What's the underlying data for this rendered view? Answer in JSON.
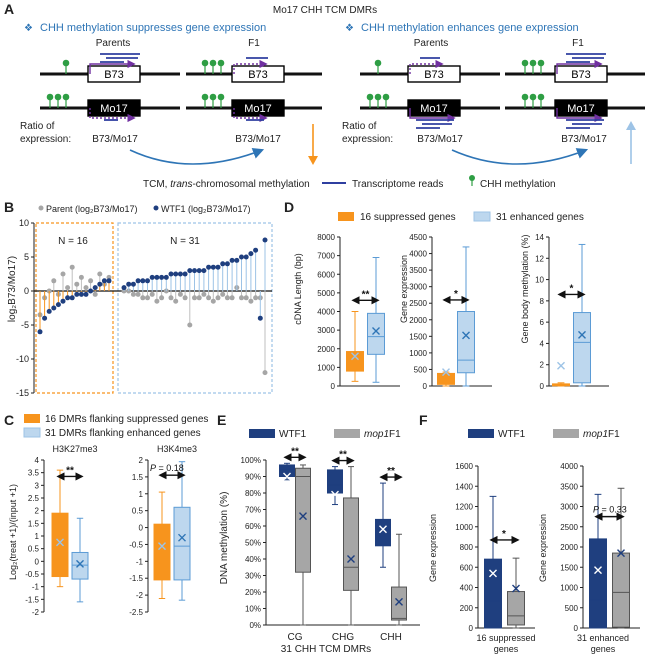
{
  "colors": {
    "orange": "#f7941d",
    "light_blue": "#9dc3e6",
    "light_blue_fill": "#bdd7ee",
    "navy": "#1f3f7f",
    "gray": "#a6a6a6",
    "purple": "#7030a0",
    "green": "#2e9e44",
    "read_blue": "#2f3fa0",
    "accent_blue": "#2e75b6"
  },
  "panel_a": {
    "label": "A",
    "title": "Mo17 CHH TCM DMRs",
    "left_heading": "CHH methylation suppresses gene expression",
    "right_heading": "CHH methylation enhances gene expression",
    "parents_label": "Parents",
    "f1_label": "F1",
    "b73_label": "B73",
    "mo17_label": "Mo17",
    "ratio_line1": "Ratio of",
    "ratio_line2": "expression:",
    "ratio_value": "B73/Mo17",
    "legend_tcm_prefix": "TCM, ",
    "legend_tcm_italic": "trans",
    "legend_tcm_suffix": "-chromosomal methylation",
    "legend_reads": "Transcriptome reads",
    "legend_chh": "CHH methylation",
    "diamond_glyph": "❖"
  },
  "panel_b": {
    "label": "B",
    "legend_parent": "Parent (log₂B73/Mo17)",
    "legend_wtf1": "WTF1 (log₂B73/Mo17)",
    "ylabel": "log₂B73/Mo17)",
    "yticks": [
      "10",
      "5",
      "0",
      "-5",
      "-10",
      "-15"
    ],
    "n_left": "N = 16",
    "n_right": "N = 31"
  },
  "panel_c": {
    "label": "C",
    "legend_suppressed": "16 DMRs flanking suppressed genes",
    "legend_enhanced": "31 DMRs flanking enhanced genes",
    "ylabel": "Log₂(treat +1)/(input +1)",
    "plot1_title": "H3K27me3",
    "plot2_title": "H3K4me3",
    "plot1_sig": "**",
    "plot2_p_italic": "P",
    "plot2_p_value": " = 0.18",
    "plot1_yticks": [
      "4",
      "3.5",
      "3",
      "2.5",
      "2",
      "1.5",
      "1",
      "0.5",
      "0",
      "-0.5",
      "-1",
      "-1.5",
      "-2"
    ],
    "plot2_yticks": [
      "2",
      "1.5",
      "1",
      "0.5",
      "0",
      "-0.5",
      "-1",
      "-1.5",
      "-2",
      "-2.5"
    ]
  },
  "panel_d": {
    "label": "D",
    "legend_suppressed": "16 suppressed genes",
    "legend_enhanced": "31 enhanced genes",
    "plot1_ylabel": "cDNA Length (bp)",
    "plot2_ylabel": "Gene expression",
    "plot3_ylabel": "Gene body methylation (%)",
    "plot1_sig": "**",
    "plot2_sig": "*",
    "plot3_sig": "*",
    "plot1_yticks": [
      "8000",
      "7000",
      "6000",
      "5000",
      "4000",
      "3000",
      "2000",
      "1000",
      "0"
    ],
    "plot2_yticks": [
      "4500",
      "4000",
      "3500",
      "3000",
      "2500",
      "2000",
      "1500",
      "1000",
      "500",
      "0"
    ],
    "plot3_yticks": [
      "14",
      "12",
      "10",
      "8",
      "6",
      "4",
      "2",
      "0"
    ]
  },
  "panel_e": {
    "label": "E",
    "legend_wtf1": "WTF1",
    "legend_mop1_italic": "mop1",
    "legend_mop1_suffix": "F1",
    "ylabel": "DNA methylation (%)",
    "yticks": [
      "100%",
      "90%",
      "80%",
      "70%",
      "60%",
      "50%",
      "40%",
      "30%",
      "20%",
      "10%",
      "0%"
    ],
    "categories": [
      "CG",
      "CHG",
      "CHH"
    ],
    "sig": [
      "**",
      "**",
      "**"
    ],
    "xlabel": "31 CHH TCM DMRs"
  },
  "panel_f": {
    "label": "F",
    "legend_wtf1": "WTF1",
    "legend_mop1_italic": "mop1",
    "legend_mop1_suffix": "F1",
    "plot1_ylabel": "Gene expression",
    "plot2_ylabel": "Gene expression",
    "plot1_sig": "*",
    "plot2_p_italic": "P",
    "plot2_p_value": " = 0.33",
    "plot1_yticks": [
      "1600",
      "1400",
      "1200",
      "1000",
      "800",
      "600",
      "400",
      "200",
      "0"
    ],
    "plot2_yticks": [
      "4000",
      "3500",
      "3000",
      "2500",
      "2000",
      "1500",
      "1000",
      "500",
      "0"
    ],
    "plot1_xlabel_1": "16 suppressed",
    "plot1_xlabel_2": "genes",
    "plot2_xlabel_1": "31 enhanced",
    "plot2_xlabel_2": "genes"
  },
  "chart_data": [
    {
      "type": "scatter",
      "panel": "B",
      "ylabel": "log₂B73/Mo17)",
      "ylim": [
        -15,
        10
      ],
      "series": [
        {
          "name": "Parent (log₂B73/Mo17)",
          "group": "suppressed",
          "values": [
            -3.5,
            -1,
            0,
            1.5,
            -0.5,
            2.5,
            0.5,
            3.5,
            1,
            2,
            0.5,
            1.5,
            -0.5,
            2.5,
            1,
            2
          ]
        },
        {
          "name": "WTF1 (log₂B73/Mo17)",
          "group": "suppressed",
          "values": [
            -6,
            -4,
            -3,
            -2.5,
            -2,
            -1.5,
            -1,
            -1,
            -0.5,
            -0.5,
            -0.5,
            0,
            0.5,
            1,
            1.5,
            1.5
          ]
        },
        {
          "name": "Parent (log₂B73/Mo17)",
          "group": "enhanced",
          "values": [
            0,
            0,
            -0.5,
            -0.5,
            -1,
            -1,
            -0.5,
            -1.5,
            -1,
            0,
            -1,
            -1.5,
            -0.5,
            -1,
            -5,
            -1,
            -1,
            -0.5,
            -1,
            -1.5,
            -1,
            -0.5,
            -1,
            -1,
            0.5,
            -1,
            -1,
            -1.5,
            -1,
            -1,
            -12
          ]
        },
        {
          "name": "WTF1 (log₂B73/Mo17)",
          "group": "enhanced",
          "values": [
            0.5,
            1,
            1,
            1.5,
            1.5,
            1.5,
            2,
            2,
            2,
            2,
            2.5,
            2.5,
            2.5,
            2.5,
            3,
            3,
            3,
            3,
            3.5,
            3.5,
            3.5,
            4,
            4,
            4.5,
            4.5,
            5,
            5,
            5.5,
            6,
            -4,
            7.5
          ]
        }
      ]
    },
    {
      "type": "box",
      "panel": "C",
      "title": "H3K27me3",
      "ylim": [
        -2,
        4
      ],
      "series": [
        {
          "name": "16 DMRs flanking suppressed genes",
          "min": -1,
          "q1": -0.6,
          "median": 0.1,
          "q3": 1.9,
          "max": 3.6,
          "mean": 0.75
        },
        {
          "name": "31 DMRs flanking enhanced genes",
          "min": -1.6,
          "q1": -0.7,
          "median": -0.15,
          "q3": 0.35,
          "max": 1.7,
          "mean": -0.1
        }
      ]
    },
    {
      "type": "box",
      "panel": "C",
      "title": "H3K4me3",
      "ylim": [
        -2.5,
        2
      ],
      "series": [
        {
          "name": "16 DMRs flanking suppressed genes",
          "min": -2.1,
          "q1": -1.55,
          "median": -0.55,
          "q3": 0.1,
          "max": 1.05,
          "mean": -0.55
        },
        {
          "name": "31 DMRs flanking enhanced genes",
          "min": -2.15,
          "q1": -1.55,
          "median": -0.55,
          "q3": 0.6,
          "max": 1.95,
          "mean": -0.3
        }
      ]
    },
    {
      "type": "box",
      "panel": "D",
      "ylabel": "cDNA Length (bp)",
      "ylim": [
        0,
        8000
      ],
      "series": [
        {
          "name": "16 suppressed genes",
          "min": 250,
          "q1": 800,
          "median": 1500,
          "q3": 1850,
          "max": 4000,
          "mean": 1600
        },
        {
          "name": "31 enhanced genes",
          "min": 200,
          "q1": 1700,
          "median": 2650,
          "q3": 3900,
          "max": 6900,
          "mean": 2950
        }
      ]
    },
    {
      "type": "box",
      "panel": "D",
      "ylabel": "Gene expression",
      "ylim": [
        0,
        4500
      ],
      "series": [
        {
          "name": "16 suppressed genes",
          "min": 0,
          "q1": 50,
          "median": 120,
          "q3": 380,
          "max": 420,
          "mean": 420
        },
        {
          "name": "31 enhanced genes",
          "min": 0,
          "q1": 400,
          "median": 780,
          "q3": 2250,
          "max": 4200,
          "mean": 1530
        }
      ]
    },
    {
      "type": "box",
      "panel": "D",
      "ylabel": "Gene body methylation (%)",
      "ylim": [
        0,
        14
      ],
      "series": [
        {
          "name": "16 suppressed genes",
          "min": 0,
          "q1": 0.02,
          "median": 0.1,
          "q3": 0.2,
          "max": 0.3,
          "mean": 1.9
        },
        {
          "name": "31 enhanced genes",
          "min": 0,
          "q1": 0.3,
          "median": 4.1,
          "q3": 6.9,
          "max": 13.3,
          "mean": 4.8
        }
      ]
    },
    {
      "type": "box",
      "panel": "E",
      "ylabel": "DNA methylation (%)",
      "xlabel": "31 CHH TCM DMRs",
      "categories": [
        "CG",
        "CHG",
        "CHH"
      ],
      "ylim": [
        0,
        100
      ],
      "series": [
        {
          "name": "WTF1",
          "boxes": [
            {
              "min": 88,
              "q1": 90,
              "median": 94,
              "q3": 97,
              "max": 98,
              "mean": 90
            },
            {
              "min": 73,
              "q1": 80,
              "median": 85,
              "q3": 94,
              "max": 96,
              "mean": 79
            },
            {
              "min": 35,
              "q1": 48,
              "median": 58,
              "q3": 64,
              "max": 86,
              "mean": 58
            }
          ]
        },
        {
          "name": "mop1F1",
          "boxes": [
            {
              "min": 0,
              "q1": 32,
              "median": 90,
              "q3": 95,
              "max": 97,
              "mean": 66
            },
            {
              "min": 0,
              "q1": 21,
              "median": 35,
              "q3": 77,
              "max": 96,
              "mean": 40
            },
            {
              "min": 0,
              "q1": 3,
              "median": 4,
              "q3": 23,
              "max": 55,
              "mean": 14
            }
          ]
        }
      ]
    },
    {
      "type": "box",
      "panel": "F",
      "xlabel": "16 suppressed genes",
      "ylabel": "Gene expression",
      "ylim": [
        0,
        1600
      ],
      "series": [
        {
          "name": "WTF1",
          "min": 0,
          "q1": 0,
          "median": 270,
          "q3": 680,
          "max": 1300,
          "mean": 540
        },
        {
          "name": "mop1F1",
          "min": 0,
          "q1": 30,
          "median": 120,
          "q3": 360,
          "max": 690,
          "mean": 390
        }
      ]
    },
    {
      "type": "box",
      "panel": "F",
      "xlabel": "31 enhanced genes",
      "ylabel": "Gene expression",
      "ylim": [
        0,
        4000
      ],
      "series": [
        {
          "name": "WTF1",
          "min": 0,
          "q1": 0,
          "median": 700,
          "q3": 2200,
          "max": 3300,
          "mean": 1430
        },
        {
          "name": "mop1F1",
          "min": 0,
          "q1": 20,
          "median": 880,
          "q3": 1850,
          "max": 3450,
          "mean": 1850
        }
      ]
    }
  ]
}
